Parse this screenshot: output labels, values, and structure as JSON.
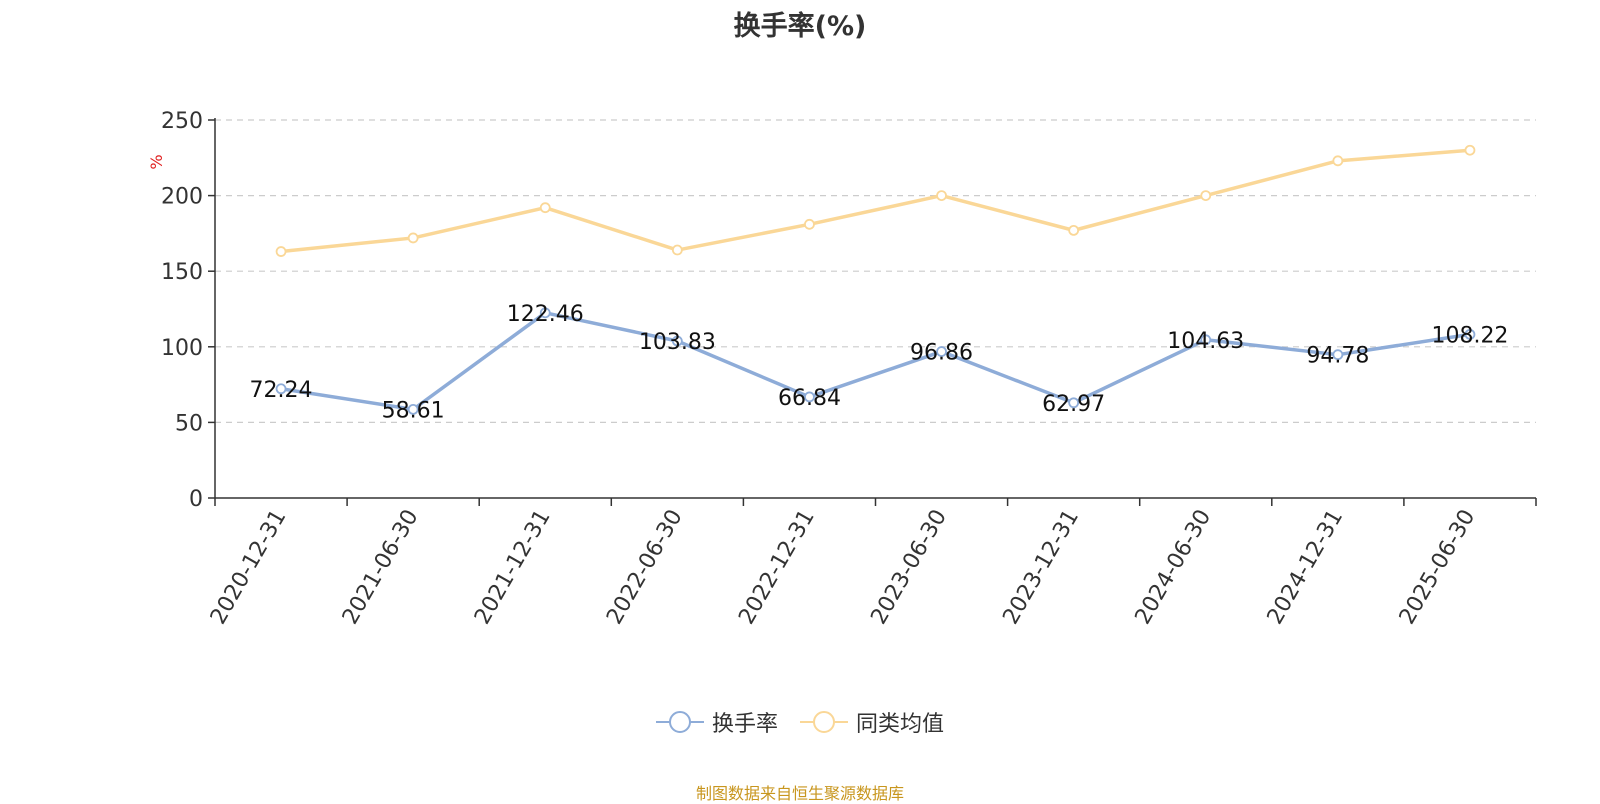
{
  "chart_data": {
    "type": "line",
    "title": "换手率(%)",
    "ylabel": "%",
    "xlabel": "",
    "ylim": [
      0,
      250
    ],
    "yticks": [
      0,
      50,
      100,
      150,
      200,
      250
    ],
    "grid": true,
    "legend_position": "bottom-center",
    "categories": [
      "2020-12-31",
      "2021-06-30",
      "2021-12-31",
      "2022-06-30",
      "2022-12-31",
      "2023-06-30",
      "2023-12-31",
      "2024-06-30",
      "2024-12-31",
      "2025-06-30"
    ],
    "series": [
      {
        "name": "换手率",
        "color": "#8eacd8",
        "values": [
          72.24,
          58.61,
          122.46,
          103.83,
          66.84,
          96.86,
          62.97,
          104.63,
          94.78,
          108.22
        ],
        "labels": [
          "72.24",
          "58.61",
          "122.46",
          "103.83",
          "66.84",
          "96.86",
          "62.97",
          "104.63",
          "94.78",
          "108.22"
        ]
      },
      {
        "name": "同类均值",
        "color": "#fad797",
        "values": [
          163,
          172,
          192,
          164,
          181,
          200,
          177,
          200,
          223,
          230
        ]
      }
    ]
  },
  "source_note": "制图数据来自恒生聚源数据库"
}
